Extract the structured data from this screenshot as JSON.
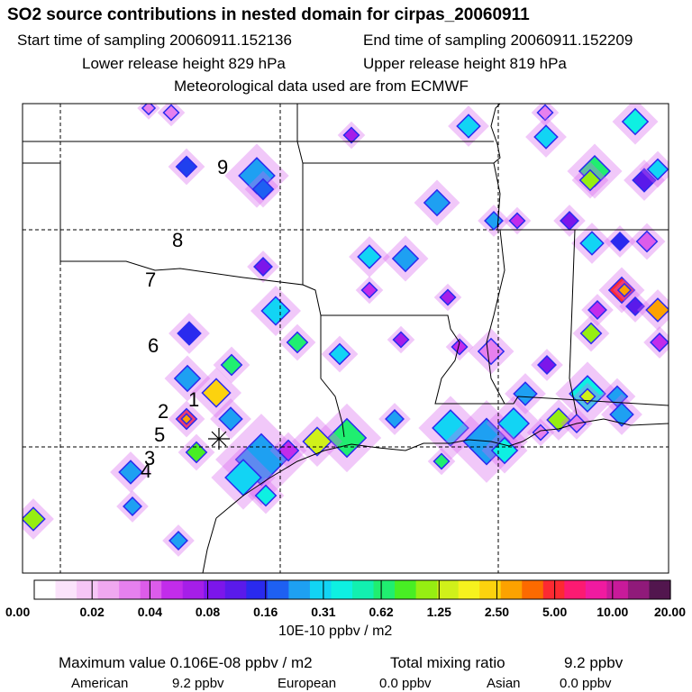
{
  "header": {
    "title": "SO2 source contributions in nested domain for cirpas_20060911",
    "start_label": "Start time of sampling 20060911.152136",
    "end_label": "End time of sampling 20060911.152209",
    "lower_label": "Lower release height  829 hPa",
    "upper_label": "Upper release height  819 hPa",
    "met_label": "Meteorological data used are from ECMWF"
  },
  "map": {
    "source_labels": [
      "1",
      "2",
      "3",
      "4",
      "5",
      "6",
      "7",
      "8",
      "9"
    ],
    "receptor_symbol": "asterisk"
  },
  "colorbar": {
    "colors": [
      "#ffffff",
      "#fbe3fb",
      "#f6c6f6",
      "#f0a8f0",
      "#e680ee",
      "#dc5cea",
      "#c22cea",
      "#a61ee8",
      "#7c16ea",
      "#5a1aea",
      "#2a2aee",
      "#1e60f2",
      "#1ea0f2",
      "#12d4f4",
      "#0ef0e2",
      "#12f0b0",
      "#20ee70",
      "#48ee24",
      "#96ee12",
      "#d0f01a",
      "#f6f21e",
      "#fcd20e",
      "#fca200",
      "#fc6a00",
      "#fc2a32",
      "#fc1a72",
      "#f01aa0",
      "#c81a9a",
      "#901a7a",
      "#52164e"
    ],
    "tick_labels": [
      "0.00",
      "0.02",
      "0.04",
      "0.08",
      "0.16",
      "0.31",
      "0.62",
      "1.25",
      "2.50",
      "5.00",
      "10.00",
      "20.00"
    ],
    "units": "10E-10 ppbv / m2"
  },
  "footer": {
    "max_value": "Maximum value  0.106E-08 ppbv / m2",
    "total_label": "Total mixing ratio",
    "total_value": "9.2 ppbv",
    "american_label": "American",
    "american_value": "9.2 ppbv",
    "european_label": "European",
    "european_value": "0.0 ppbv",
    "asian_label": "Asian",
    "asian_value": "0.0 ppbv"
  }
}
